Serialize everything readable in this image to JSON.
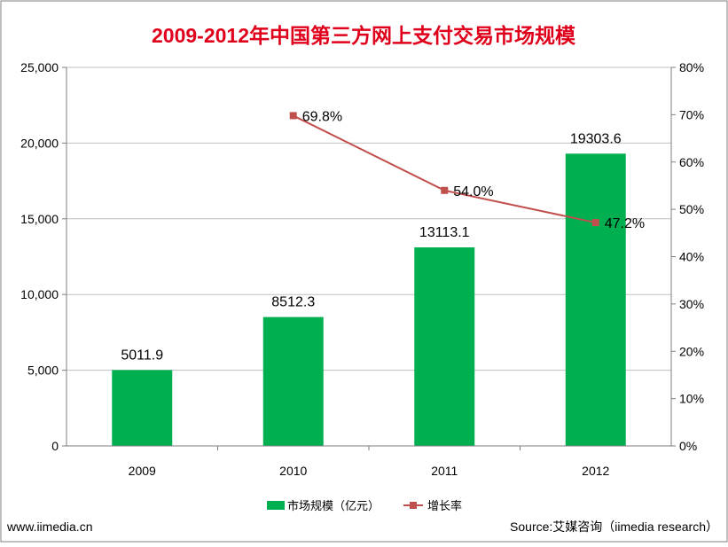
{
  "chart_data": {
    "type": "bar+line",
    "title": "2009-2012年中国第三方网上支付交易市场规模",
    "categories": [
      "2009",
      "2010",
      "2011",
      "2012"
    ],
    "series": [
      {
        "name": "市场规模（亿元）",
        "type": "bar",
        "axis": "left",
        "values": [
          5011.9,
          8512.3,
          13113.1,
          19303.6
        ],
        "labels": [
          "5011.9",
          "8512.3",
          "13113.1",
          "19303.6"
        ],
        "color": "#00b050"
      },
      {
        "name": "增长率",
        "type": "line",
        "axis": "right",
        "values": [
          null,
          69.8,
          54.0,
          47.2
        ],
        "labels": [
          "",
          "69.8%",
          "54.0%",
          "47.2%"
        ],
        "color": "#c0504d"
      }
    ],
    "y_left": {
      "min": 0,
      "max": 25000,
      "ticks": [
        0,
        5000,
        10000,
        15000,
        20000,
        25000
      ],
      "tick_labels": [
        "0",
        "5,000",
        "10,000",
        "15,000",
        "20,000",
        "25,000"
      ]
    },
    "y_right": {
      "min": 0,
      "max": 80,
      "ticks": [
        0,
        10,
        20,
        30,
        40,
        50,
        60,
        70,
        80
      ],
      "tick_labels": [
        "0%",
        "10%",
        "20%",
        "30%",
        "40%",
        "50%",
        "60%",
        "70%",
        "80%"
      ]
    },
    "grid": true,
    "legend": "bottom-center"
  },
  "colors": {
    "title": "#e0001b",
    "bar": "#00b050",
    "line": "#c0504d",
    "grid": "#c0c0c0",
    "border": "#7f7f7f"
  },
  "footer": {
    "left": "www.iimedia.cn",
    "right": "Source:艾媒咨询（iimedia  research）"
  }
}
